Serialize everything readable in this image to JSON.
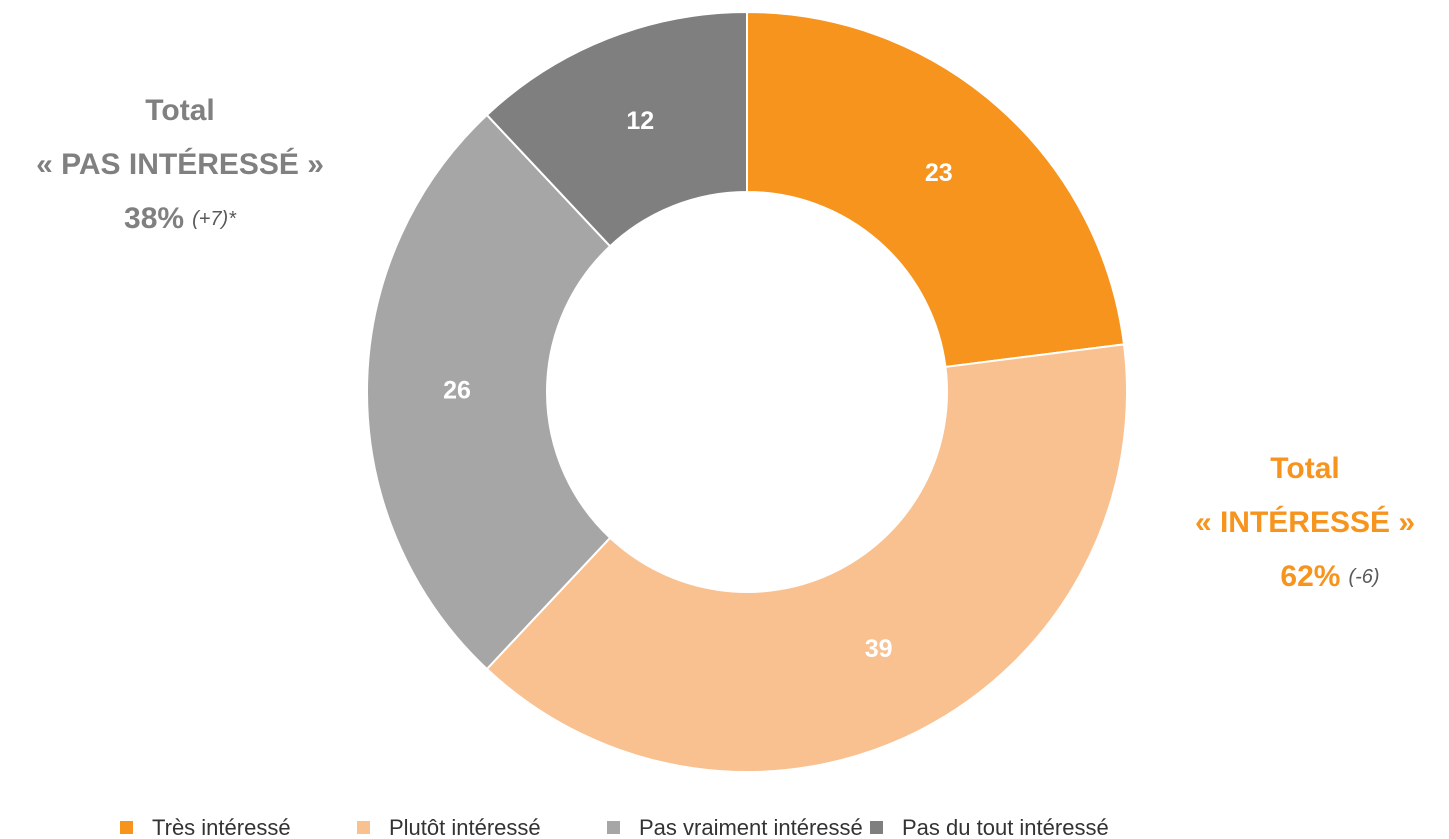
{
  "chart_data": {
    "type": "donut",
    "categories": [
      "Très intéressé",
      "Plutôt intéressé",
      "Pas vraiment intéressé",
      "Pas du tout intéressé"
    ],
    "values": [
      23,
      39,
      26,
      12
    ],
    "colors": [
      "#f7941d",
      "#f9c090",
      "#a6a6a6",
      "#7f7f7f"
    ],
    "legend": "bottom",
    "annotations": [
      {
        "lines": [
          "Total",
          "« PAS INTÉRESSÉ »"
        ],
        "value": "38%",
        "change": "(+7)*",
        "color": "#808080"
      },
      {
        "lines": [
          "Total",
          "« INTÉRESSÉ »"
        ],
        "value": "62%",
        "change": "(-6)",
        "color": "#f7941d"
      }
    ]
  }
}
